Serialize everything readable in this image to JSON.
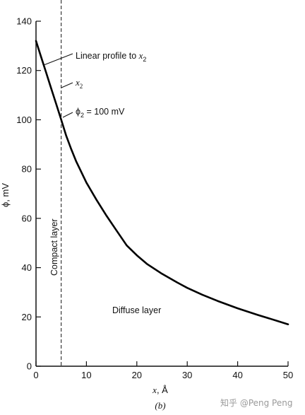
{
  "chart_data": {
    "type": "line",
    "xlabel_var": "x",
    "xlabel_unit": ", Å",
    "ylabel": "ϕ, mV",
    "xlim": [
      0,
      50
    ],
    "ylim": [
      0,
      140
    ],
    "x_ticks": [
      "0",
      "10",
      "20",
      "30",
      "40",
      "50"
    ],
    "y_ticks": [
      "0",
      "20",
      "40",
      "60",
      "80",
      "100",
      "120",
      "140"
    ],
    "grid": false,
    "series": [
      {
        "x": [
          0,
          1,
          2,
          3,
          4,
          5,
          6,
          7,
          8,
          10,
          12,
          14,
          16,
          18,
          20,
          22,
          25,
          28,
          30,
          33,
          36,
          40,
          44,
          48,
          50
        ],
        "y": [
          132,
          125.6,
          119.2,
          112.8,
          106.4,
          100,
          93.5,
          88,
          83,
          74.5,
          67.5,
          61,
          55,
          49,
          45,
          41.5,
          37.5,
          34,
          31.8,
          29,
          26.5,
          23.5,
          20.8,
          18.3,
          17
        ]
      }
    ],
    "vline_x": 5,
    "annotations": {
      "linear_profile_text": "Linear profile to ",
      "linear_profile_var": "x",
      "linear_profile_sub": "2",
      "x2_var": "x",
      "x2_sub": "2",
      "phi2_sym": "ϕ",
      "phi2_sub": "2",
      "phi2_value": " = 100 mV",
      "compact_layer": "Compact layer",
      "diffuse_layer": "Diffuse layer"
    },
    "caption": "(b)"
  },
  "watermark": "知乎 @Peng Peng"
}
